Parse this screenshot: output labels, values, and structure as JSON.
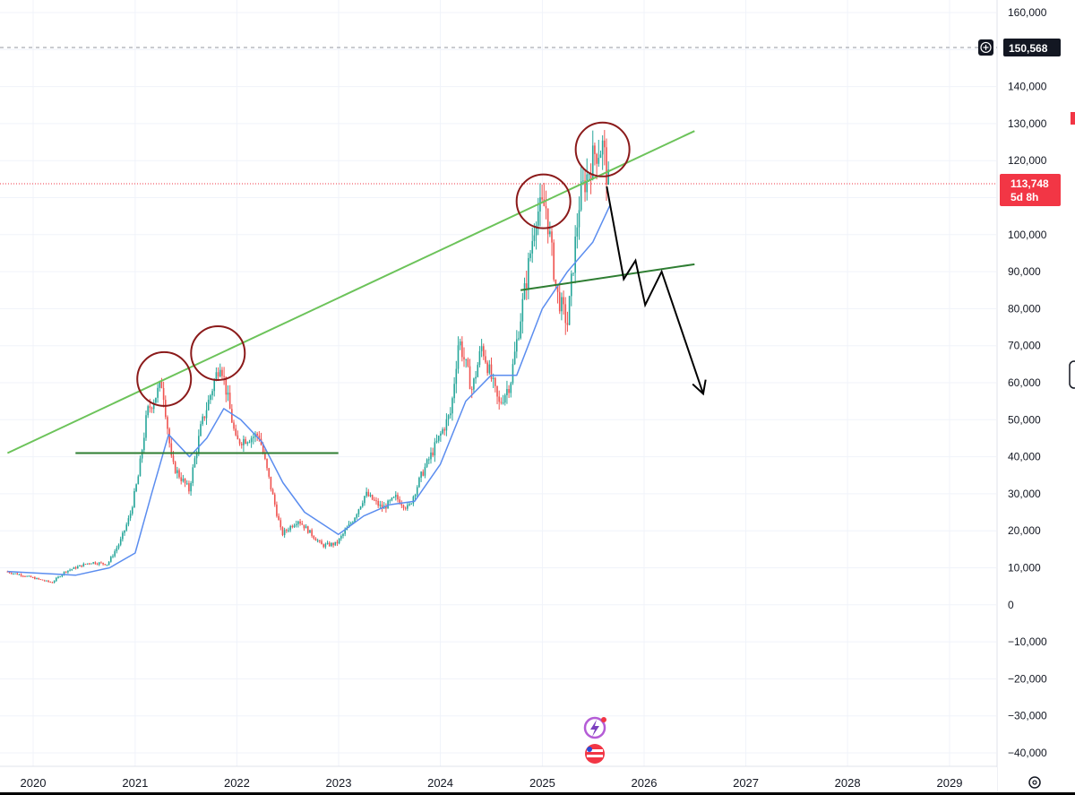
{
  "chart_data": {
    "type": "candlestick",
    "x_ticks": [
      "2020",
      "2021",
      "2022",
      "2023",
      "2024",
      "2025",
      "2026",
      "2027",
      "2028",
      "2029"
    ],
    "y_ticks": [
      160000,
      150000,
      140000,
      130000,
      120000,
      110000,
      100000,
      90000,
      80000,
      70000,
      60000,
      50000,
      40000,
      30000,
      20000,
      10000,
      0,
      -10000,
      -20000,
      -30000,
      -40000
    ],
    "y_tick_labels": [
      "160,000",
      "140,000",
      "130,000",
      "120,000",
      "100,000",
      "90,000",
      "80,000",
      "70,000",
      "60,000",
      "50,000",
      "40,000",
      "30,000",
      "20,000",
      "10,000",
      "0",
      "−10,000",
      "−20,000",
      "−30,000",
      "−40,000"
    ],
    "ylim": [
      -45000,
      165000
    ],
    "xlim": [
      "2019-10-01",
      "2029-08-20"
    ],
    "grid": true,
    "price_line": {
      "value": 150568,
      "label": "150,568",
      "style": "dashed"
    },
    "current_price": {
      "value": 113748,
      "label": "113,748",
      "countdown": "5d 8h",
      "color": "#f23645"
    },
    "colors": {
      "up": "#26a69a",
      "down": "#ef5350",
      "ma": "#5b8def",
      "trendline": "#6cc35a",
      "support": "#2e7d32",
      "circle": "#8b1a1a",
      "arrow": "#000000"
    },
    "price_path": [
      [
        "2019-10-01",
        9000
      ],
      [
        "2019-12-01",
        8000
      ],
      [
        "2020-03-15",
        6000
      ],
      [
        "2020-05-01",
        9000
      ],
      [
        "2020-08-01",
        11500
      ],
      [
        "2020-10-01",
        11000
      ],
      [
        "2020-11-15",
        17000
      ],
      [
        "2020-12-20",
        24000
      ],
      [
        "2021-01-20",
        35000
      ],
      [
        "2021-02-20",
        52000
      ],
      [
        "2021-04-15",
        60000
      ],
      [
        "2021-05-20",
        38000
      ],
      [
        "2021-07-20",
        31000
      ],
      [
        "2021-09-01",
        48000
      ],
      [
        "2021-11-10",
        66000
      ],
      [
        "2022-01-05",
        44000
      ],
      [
        "2022-03-28",
        46000
      ],
      [
        "2022-05-15",
        30000
      ],
      [
        "2022-06-18",
        19000
      ],
      [
        "2022-08-15",
        23000
      ],
      [
        "2022-11-10",
        16000
      ],
      [
        "2022-12-31",
        16500
      ],
      [
        "2023-03-01",
        23000
      ],
      [
        "2023-04-15",
        30000
      ],
      [
        "2023-06-15",
        26000
      ],
      [
        "2023-08-01",
        29000
      ],
      [
        "2023-09-15",
        26000
      ],
      [
        "2023-11-01",
        35000
      ],
      [
        "2023-12-15",
        42000
      ],
      [
        "2024-02-15",
        52000
      ],
      [
        "2024-03-14",
        72000
      ],
      [
        "2024-05-01",
        58000
      ],
      [
        "2024-06-05",
        70000
      ],
      [
        "2024-08-05",
        54000
      ],
      [
        "2024-09-15",
        60000
      ],
      [
        "2024-11-12",
        88000
      ],
      [
        "2024-12-17",
        106000
      ],
      [
        "2025-01-20",
        108000
      ],
      [
        "2025-03-01",
        84000
      ],
      [
        "2025-04-08",
        76000
      ],
      [
        "2025-05-22",
        110000
      ],
      [
        "2025-07-14",
        122000
      ],
      [
        "2025-08-14",
        124000
      ],
      [
        "2025-08-31",
        113748
      ]
    ],
    "moving_average": [
      [
        "2019-10-01",
        9000
      ],
      [
        "2020-06-01",
        8000
      ],
      [
        "2020-10-01",
        10000
      ],
      [
        "2021-01-01",
        14000
      ],
      [
        "2021-03-01",
        30000
      ],
      [
        "2021-05-01",
        46000
      ],
      [
        "2021-07-15",
        40000
      ],
      [
        "2021-09-15",
        45000
      ],
      [
        "2021-11-15",
        53000
      ],
      [
        "2022-01-15",
        50000
      ],
      [
        "2022-04-01",
        44000
      ],
      [
        "2022-06-15",
        33000
      ],
      [
        "2022-09-01",
        25000
      ],
      [
        "2022-12-31",
        19000
      ],
      [
        "2023-04-01",
        24000
      ],
      [
        "2023-07-01",
        27000
      ],
      [
        "2023-10-01",
        28000
      ],
      [
        "2024-01-01",
        38000
      ],
      [
        "2024-04-01",
        55000
      ],
      [
        "2024-07-01",
        62000
      ],
      [
        "2024-10-01",
        62000
      ],
      [
        "2025-01-01",
        80000
      ],
      [
        "2025-04-01",
        90000
      ],
      [
        "2025-07-01",
        98000
      ],
      [
        "2025-09-01",
        108000
      ]
    ],
    "annotations": {
      "trendline": [
        [
          "2019-10-01",
          41000
        ],
        [
          "2026-07-01",
          128000
        ]
      ],
      "support_lines": [
        [
          [
            "2020-06-01",
            41000
          ],
          [
            "2022-12-31",
            41000
          ]
        ],
        [
          [
            "2024-10-15",
            85000
          ],
          [
            "2026-07-01",
            92000
          ]
        ]
      ],
      "circles": [
        [
          "2021-04-15",
          61000
        ],
        [
          "2021-10-25",
          68000
        ],
        [
          "2025-01-05",
          109000
        ],
        [
          "2025-08-05",
          123000
        ]
      ],
      "forecast_arrow": [
        [
          "2025-08-20",
          113000
        ],
        [
          "2025-10-20",
          88000
        ],
        [
          "2025-12-01",
          93000
        ],
        [
          "2026-01-05",
          81000
        ],
        [
          "2026-03-05",
          90000
        ],
        [
          "2026-08-01",
          57000
        ]
      ]
    }
  }
}
